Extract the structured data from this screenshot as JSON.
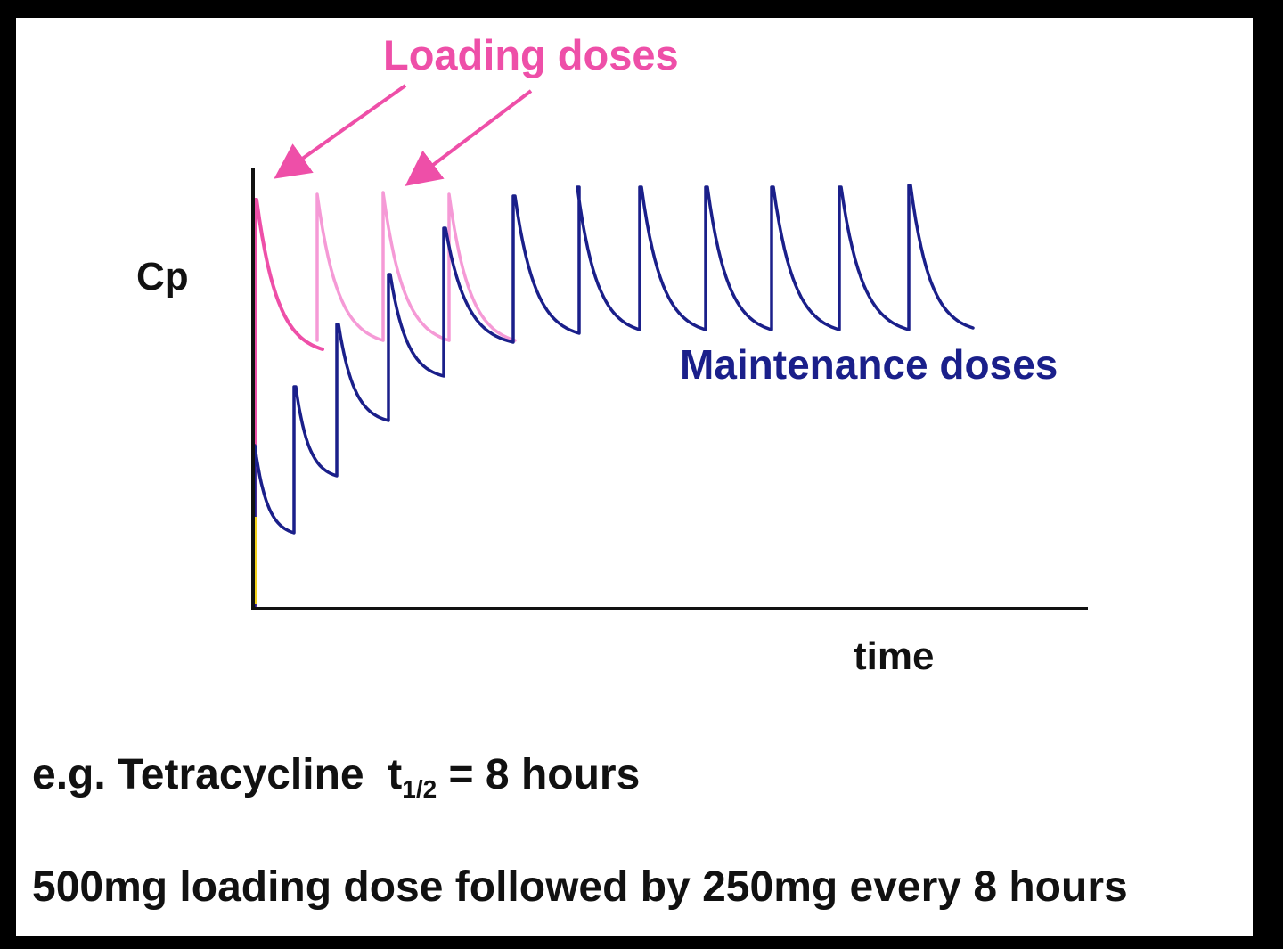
{
  "labels": {
    "loading_doses": "Loading doses",
    "maintenance_doses": "Maintenance doses",
    "y_axis": "Cp",
    "x_axis": "time"
  },
  "example": {
    "prefix": "e.g. Tetracycline",
    "symbol": "t",
    "subscript": "1/2",
    "suffix": "= 8 hours"
  },
  "regimen": "500mg loading dose followed by 250mg every 8 hours",
  "colors": {
    "loading": "#ee4fa8",
    "loading_light": "#f59ad6",
    "maintenance": "#1a1f8a",
    "axis": "#111111",
    "background": "#ffffff",
    "frame": "#000000"
  },
  "curves": {
    "loading_dose_count": 4,
    "maintenance_only_dose_count": 10
  }
}
